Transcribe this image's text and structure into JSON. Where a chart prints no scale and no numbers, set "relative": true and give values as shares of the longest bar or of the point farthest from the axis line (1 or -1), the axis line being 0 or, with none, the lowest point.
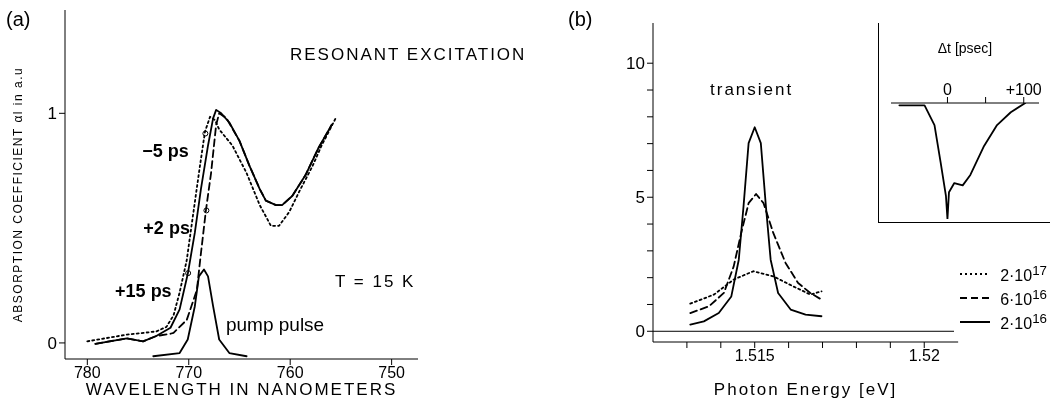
{
  "chart_data": [
    {
      "type": "line",
      "title": "(a)",
      "xlabel": "WAVELENGTH IN NANOMETERS",
      "ylabel": "ABSORPTION COEFFICIENT αl in a.u",
      "xlim": [
        782.2,
        747.4
      ],
      "ylim": [
        -0.07,
        1.45
      ],
      "xticks": [
        780,
        770,
        760,
        750
      ],
      "yticks": [
        0,
        1
      ],
      "legend": false,
      "marker": "none",
      "series": [
        {
          "color": "#000000",
          "line_style": "dotted",
          "x": [
            780,
            776.1,
            773.2,
            772.2,
            771.5,
            770.9,
            770.2,
            769.6,
            768.9,
            768.4,
            767.9,
            767.4,
            767.0,
            765.7,
            764.3,
            763.0,
            761.9,
            761.1,
            760.1,
            759.1,
            757.8,
            756.9,
            755.5
          ],
          "values": [
            0.007,
            0.036,
            0.05,
            0.07,
            0.12,
            0.22,
            0.36,
            0.55,
            0.77,
            0.92,
            0.985,
            0.97,
            0.93,
            0.86,
            0.74,
            0.6,
            0.51,
            0.51,
            0.57,
            0.66,
            0.77,
            0.86,
            0.98
          ]
        },
        {
          "color": "#000000",
          "line_style": "dashed",
          "x": [
            779.2,
            776.1,
            774.5,
            773.2,
            771.8,
            771.5,
            770.2,
            769.2,
            768.8,
            768.3,
            767.8,
            767.3,
            767.0,
            766.3,
            765.0,
            764.0,
            763.0,
            762.4,
            761.4,
            760.8,
            759.8,
            758.5,
            757.2,
            755.9
          ],
          "values": [
            -0.004,
            0.02,
            0.007,
            0.03,
            0.04,
            0.044,
            0.1,
            0.23,
            0.39,
            0.58,
            0.74,
            0.95,
            1.0,
            0.98,
            0.88,
            0.77,
            0.67,
            0.62,
            0.6,
            0.6,
            0.64,
            0.73,
            0.85,
            0.95
          ]
        },
        {
          "color": "#000000",
          "line_style": "solid",
          "x": [
            779.2,
            776.1,
            774.5,
            773.2,
            771.8,
            770.9,
            770.1,
            769.4,
            768.8,
            768.1,
            767.6,
            767.3,
            766.8,
            766.0,
            765.0,
            764.0,
            763.0,
            762.4,
            761.4,
            760.8,
            759.8,
            758.5,
            757.2,
            755.9
          ],
          "values": [
            -0.004,
            0.02,
            0.007,
            0.03,
            0.066,
            0.146,
            0.3,
            0.48,
            0.67,
            0.86,
            0.978,
            1.015,
            1.0,
            0.96,
            0.88,
            0.77,
            0.67,
            0.62,
            0.6,
            0.6,
            0.64,
            0.73,
            0.85,
            0.95
          ]
        },
        {
          "name": "pump pulse",
          "color": "#000000",
          "line_style": "solid",
          "x": [
            773.5,
            770.9,
            770.1,
            769.4,
            769.0,
            768.5,
            768.1,
            767.6,
            767.0,
            766.0,
            764.3
          ],
          "values": [
            -0.058,
            -0.044,
            0.015,
            0.16,
            0.29,
            0.32,
            0.29,
            0.16,
            0.015,
            -0.044,
            -0.058
          ]
        }
      ],
      "annotations": [
        "RESONANT EXCITATION",
        "T = 15 K",
        {
          "text": "−5 ps",
          "x": 768.36,
          "y": 0.912
        },
        {
          "text": "+2 ps",
          "x": 768.26,
          "y": 0.577
        },
        {
          "text": "+15 ps",
          "x": 770.06,
          "y": 0.304
        }
      ]
    },
    {
      "type": "line",
      "title": "(b)",
      "xlabel": "Photon Energy  [eV]",
      "xlim": [
        1.512,
        1.521
      ],
      "ylim": [
        -0.4,
        11.5
      ],
      "xticks": [
        {
          "value": 1.513,
          "label": null
        },
        {
          "value": 1.514,
          "label": null
        },
        1.515,
        {
          "value": 1.516,
          "label": null
        },
        {
          "value": 1.517,
          "label": null
        },
        {
          "value": 1.518,
          "label": null
        },
        {
          "value": 1.519,
          "label": null
        },
        1.52
      ],
      "yticks": [
        0,
        {
          "value": 1,
          "label": null
        },
        {
          "value": 2,
          "label": null
        },
        {
          "value": 3,
          "label": null
        },
        {
          "value": 4,
          "label": null
        },
        5,
        {
          "value": 6,
          "label": null
        },
        {
          "value": 7,
          "label": null
        },
        {
          "value": 8,
          "label": null
        },
        {
          "value": 9,
          "label": null
        },
        10
      ],
      "legend": "bottom right",
      "marker": "none",
      "ref_lines": [
        {
          "axis": "y",
          "value": 0,
          "color": "#000000"
        }
      ],
      "series": [
        {
          "name": "2·10$^{17}$",
          "color": "#000000",
          "line_style": "dotted",
          "x": [
            1.5131,
            1.5138,
            1.51438,
            1.51496,
            1.51555,
            1.51613,
            1.51664,
            1.51697
          ],
          "values": [
            1.03,
            1.37,
            1.93,
            2.24,
            2.05,
            1.68,
            1.37,
            1.49
          ]
        },
        {
          "name": "6·10$^{16}$",
          "color": "#000000",
          "line_style": "dashed",
          "x": [
            1.5131,
            1.51365,
            1.51409,
            1.51438,
            1.5146,
            1.51482,
            1.51504,
            1.51526,
            1.51555,
            1.51591,
            1.51628,
            1.51664,
            1.51697
          ],
          "values": [
            0.68,
            0.93,
            1.43,
            2.42,
            3.66,
            4.78,
            5.12,
            4.78,
            3.66,
            2.55,
            1.8,
            1.43,
            1.18
          ]
        },
        {
          "name": "2·10$^{16}$",
          "color": "#000000",
          "line_style": "solid",
          "x": [
            1.5131,
            1.5135,
            1.51394,
            1.51431,
            1.51453,
            1.51467,
            1.51482,
            1.515,
            1.51518,
            1.51533,
            1.51547,
            1.51569,
            1.51606,
            1.5165,
            1.51697
          ],
          "values": [
            0.25,
            0.37,
            0.68,
            1.3,
            2.67,
            4.66,
            7.02,
            7.61,
            7.02,
            4.66,
            2.67,
            1.43,
            0.81,
            0.62,
            0.56
          ]
        }
      ],
      "annotations": [
        "transient"
      ]
    },
    {
      "type": "line",
      "xlabel": "Δt  [psec]",
      "relative": true,
      "xlim": [
        -74,
        120
      ],
      "xticks": [
        0,
        {
          "value": 50,
          "label": null
        },
        {
          "value": 100,
          "label": "+100"
        }
      ],
      "tick_labels": "x",
      "legend": false,
      "marker": "none",
      "series": [
        {
          "color": "#000000",
          "line_style": "solid",
          "x": [
            -63,
            -30,
            -17,
            -9,
            -2,
            0,
            2,
            9,
            20,
            30,
            48,
            65,
            83,
            102
          ],
          "values": [
            0.98,
            0.98,
            0.81,
            0.49,
            0.2,
            0,
            0.23,
            0.31,
            0.29,
            0.38,
            0.63,
            0.81,
            0.92,
            1
          ]
        }
      ]
    }
  ]
}
